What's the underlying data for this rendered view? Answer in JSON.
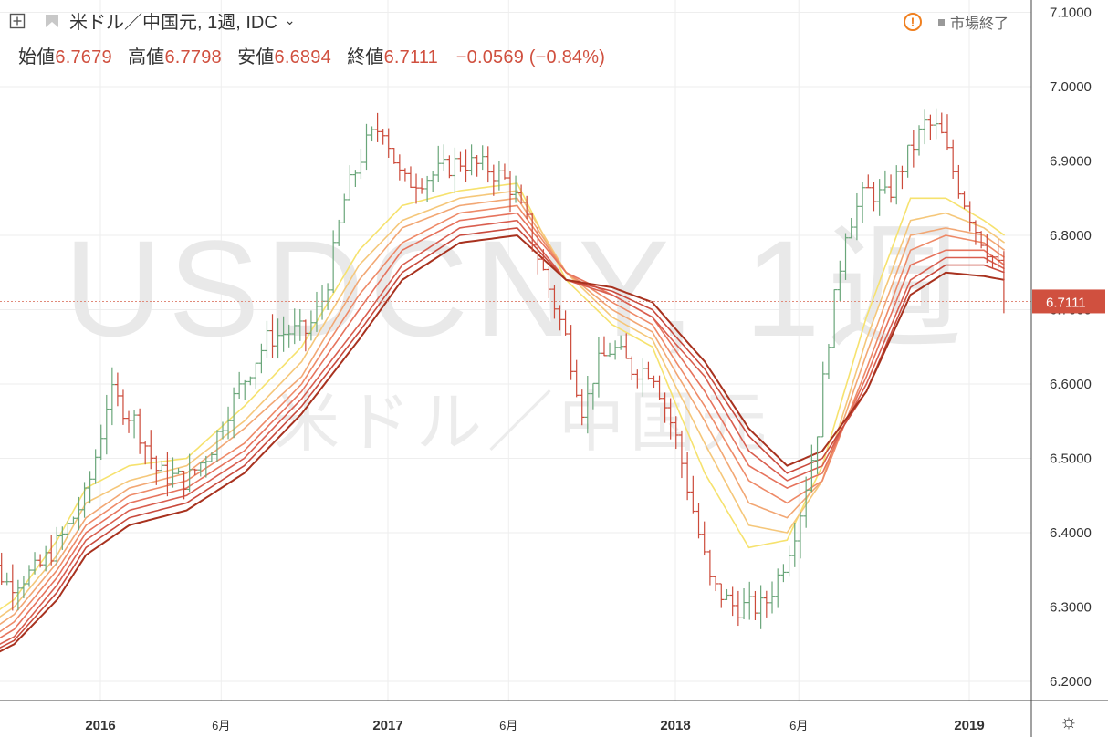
{
  "header": {
    "symbol_title": "米ドル／中国元, 1週, IDC",
    "open_label": "始値",
    "open_value": "6.7679",
    "high_label": "高値",
    "high_value": "6.7798",
    "low_label": "安値",
    "low_value": "6.6894",
    "close_label": "終値",
    "close_value": "6.7111",
    "change_text": "−0.0569 (−0.84%)"
  },
  "status": {
    "warning_icon": "!",
    "dot_icon": "square-dot-icon",
    "market_status": "市場終了"
  },
  "watermark": {
    "symbol": "USDCNY, 1週",
    "name": "米ドル／中国元"
  },
  "price_label": "6.7111",
  "colors": {
    "up": "#6aa67a",
    "down": "#cc4a3a",
    "ribbon": [
      "#f6e26e",
      "#f5c77a",
      "#f2a774",
      "#ee8a68",
      "#e6735d",
      "#d95e4f",
      "#c94a3d",
      "#a8321f"
    ],
    "grid": "#eeeeee",
    "price_line": "#e08a7a",
    "price_tag": "#d0503f"
  },
  "chart_data": {
    "type": "candlestick",
    "title": "米ドル／中国元, 1週, IDC",
    "ylim": [
      6.15,
      7.12
    ],
    "yticks": [
      6.2,
      6.3,
      6.4,
      6.5,
      6.6,
      6.7,
      6.8,
      6.9,
      7.0,
      7.1
    ],
    "ytick_labels": [
      "6.2000",
      "6.3000",
      "6.4000",
      "6.5000",
      "6.6000",
      "6.7000",
      "6.8000",
      "6.9000",
      "7.0000",
      "7.1000"
    ],
    "xtick_labels": [
      "2016",
      "6月",
      "2017",
      "6月",
      "2018",
      "6月",
      "2019"
    ],
    "last_price": 6.7111,
    "price_path": [
      [
        2015.58,
        6.38
      ],
      [
        2015.68,
        6.33
      ],
      [
        2015.78,
        6.35
      ],
      [
        2015.86,
        6.39
      ],
      [
        2015.95,
        6.45
      ],
      [
        2016.0,
        6.53
      ],
      [
        2016.03,
        6.59
      ],
      [
        2016.12,
        6.55
      ],
      [
        2016.2,
        6.48
      ],
      [
        2016.3,
        6.47
      ],
      [
        2016.38,
        6.51
      ],
      [
        2016.45,
        6.57
      ],
      [
        2016.52,
        6.62
      ],
      [
        2016.58,
        6.66
      ],
      [
        2016.65,
        6.67
      ],
      [
        2016.72,
        6.67
      ],
      [
        2016.78,
        6.72
      ],
      [
        2016.85,
        6.85
      ],
      [
        2016.92,
        6.92
      ],
      [
        2016.98,
        6.95
      ],
      [
        2017.05,
        6.87
      ],
      [
        2017.15,
        6.88
      ],
      [
        2017.25,
        6.9
      ],
      [
        2017.35,
        6.89
      ],
      [
        2017.42,
        6.87
      ],
      [
        2017.48,
        6.82
      ],
      [
        2017.55,
        6.74
      ],
      [
        2017.62,
        6.66
      ],
      [
        2017.68,
        6.56
      ],
      [
        2017.72,
        6.62
      ],
      [
        2017.78,
        6.65
      ],
      [
        2017.85,
        6.62
      ],
      [
        2017.92,
        6.62
      ],
      [
        2018.0,
        6.53
      ],
      [
        2018.06,
        6.43
      ],
      [
        2018.12,
        6.33
      ],
      [
        2018.2,
        6.3
      ],
      [
        2018.3,
        6.3
      ],
      [
        2018.36,
        6.35
      ],
      [
        2018.42,
        6.42
      ],
      [
        2018.48,
        6.53
      ],
      [
        2018.52,
        6.66
      ],
      [
        2018.58,
        6.81
      ],
      [
        2018.65,
        6.86
      ],
      [
        2018.72,
        6.85
      ],
      [
        2018.78,
        6.9
      ],
      [
        2018.85,
        6.95
      ],
      [
        2018.9,
        6.94
      ],
      [
        2018.95,
        6.88
      ],
      [
        2019.02,
        6.81
      ],
      [
        2019.08,
        6.77
      ],
      [
        2019.12,
        6.74
      ]
    ],
    "ribbon": [
      {
        "name": "",
        "values": [
          [
            2015.55,
            6.27
          ],
          [
            2015.7,
            6.31
          ],
          [
            2015.85,
            6.39
          ],
          [
            2015.95,
            6.46
          ],
          [
            2016.1,
            6.49
          ],
          [
            2016.3,
            6.5
          ],
          [
            2016.5,
            6.57
          ],
          [
            2016.7,
            6.65
          ],
          [
            2016.9,
            6.78
          ],
          [
            2017.05,
            6.84
          ],
          [
            2017.25,
            6.86
          ],
          [
            2017.45,
            6.87
          ],
          [
            2017.62,
            6.74
          ],
          [
            2017.78,
            6.68
          ],
          [
            2017.92,
            6.65
          ],
          [
            2018.1,
            6.48
          ],
          [
            2018.25,
            6.38
          ],
          [
            2018.38,
            6.39
          ],
          [
            2018.5,
            6.49
          ],
          [
            2018.65,
            6.69
          ],
          [
            2018.8,
            6.85
          ],
          [
            2018.92,
            6.85
          ],
          [
            2019.05,
            6.82
          ],
          [
            2019.12,
            6.8
          ]
        ]
      },
      {
        "name": "",
        "values": [
          [
            2015.55,
            6.26
          ],
          [
            2015.7,
            6.3
          ],
          [
            2015.85,
            6.37
          ],
          [
            2015.95,
            6.44
          ],
          [
            2016.1,
            6.47
          ],
          [
            2016.3,
            6.49
          ],
          [
            2016.5,
            6.55
          ],
          [
            2016.7,
            6.63
          ],
          [
            2016.9,
            6.76
          ],
          [
            2017.05,
            6.82
          ],
          [
            2017.25,
            6.85
          ],
          [
            2017.45,
            6.86
          ],
          [
            2017.62,
            6.75
          ],
          [
            2017.78,
            6.69
          ],
          [
            2017.92,
            6.66
          ],
          [
            2018.1,
            6.52
          ],
          [
            2018.25,
            6.41
          ],
          [
            2018.38,
            6.4
          ],
          [
            2018.5,
            6.47
          ],
          [
            2018.65,
            6.66
          ],
          [
            2018.8,
            6.82
          ],
          [
            2018.92,
            6.83
          ],
          [
            2019.05,
            6.81
          ],
          [
            2019.12,
            6.79
          ]
        ]
      },
      {
        "name": "",
        "values": [
          [
            2015.55,
            6.25
          ],
          [
            2015.7,
            6.29
          ],
          [
            2015.85,
            6.36
          ],
          [
            2015.95,
            6.42
          ],
          [
            2016.1,
            6.46
          ],
          [
            2016.3,
            6.48
          ],
          [
            2016.5,
            6.54
          ],
          [
            2016.7,
            6.61
          ],
          [
            2016.9,
            6.74
          ],
          [
            2017.05,
            6.81
          ],
          [
            2017.25,
            6.84
          ],
          [
            2017.45,
            6.85
          ],
          [
            2017.62,
            6.75
          ],
          [
            2017.78,
            6.7
          ],
          [
            2017.92,
            6.67
          ],
          [
            2018.1,
            6.55
          ],
          [
            2018.25,
            6.44
          ],
          [
            2018.38,
            6.42
          ],
          [
            2018.5,
            6.47
          ],
          [
            2018.65,
            6.64
          ],
          [
            2018.8,
            6.8
          ],
          [
            2018.92,
            6.81
          ],
          [
            2019.05,
            6.8
          ],
          [
            2019.12,
            6.78
          ]
        ]
      },
      {
        "name": "",
        "values": [
          [
            2015.55,
            6.24
          ],
          [
            2015.7,
            6.28
          ],
          [
            2015.85,
            6.35
          ],
          [
            2015.95,
            6.41
          ],
          [
            2016.1,
            6.45
          ],
          [
            2016.3,
            6.47
          ],
          [
            2016.5,
            6.52
          ],
          [
            2016.7,
            6.6
          ],
          [
            2016.9,
            6.72
          ],
          [
            2017.05,
            6.79
          ],
          [
            2017.25,
            6.83
          ],
          [
            2017.45,
            6.84
          ],
          [
            2017.62,
            6.75
          ],
          [
            2017.78,
            6.71
          ],
          [
            2017.92,
            6.68
          ],
          [
            2018.1,
            6.57
          ],
          [
            2018.25,
            6.47
          ],
          [
            2018.38,
            6.44
          ],
          [
            2018.5,
            6.47
          ],
          [
            2018.65,
            6.62
          ],
          [
            2018.8,
            6.78
          ],
          [
            2018.92,
            6.8
          ],
          [
            2019.05,
            6.79
          ],
          [
            2019.12,
            6.77
          ]
        ]
      },
      {
        "name": "",
        "values": [
          [
            2015.55,
            6.235
          ],
          [
            2015.7,
            6.27
          ],
          [
            2015.85,
            6.34
          ],
          [
            2015.95,
            6.4
          ],
          [
            2016.1,
            6.44
          ],
          [
            2016.3,
            6.46
          ],
          [
            2016.5,
            6.51
          ],
          [
            2016.7,
            6.59
          ],
          [
            2016.9,
            6.7
          ],
          [
            2017.05,
            6.78
          ],
          [
            2017.25,
            6.82
          ],
          [
            2017.45,
            6.83
          ],
          [
            2017.62,
            6.75
          ],
          [
            2017.78,
            6.72
          ],
          [
            2017.92,
            6.69
          ],
          [
            2018.1,
            6.59
          ],
          [
            2018.25,
            6.49
          ],
          [
            2018.38,
            6.46
          ],
          [
            2018.5,
            6.48
          ],
          [
            2018.65,
            6.61
          ],
          [
            2018.8,
            6.76
          ],
          [
            2018.92,
            6.78
          ],
          [
            2019.05,
            6.78
          ],
          [
            2019.12,
            6.76
          ]
        ]
      },
      {
        "name": "",
        "values": [
          [
            2015.55,
            6.23
          ],
          [
            2015.7,
            6.26
          ],
          [
            2015.85,
            6.33
          ],
          [
            2015.95,
            6.39
          ],
          [
            2016.1,
            6.43
          ],
          [
            2016.3,
            6.45
          ],
          [
            2016.5,
            6.5
          ],
          [
            2016.7,
            6.58
          ],
          [
            2016.9,
            6.68
          ],
          [
            2017.05,
            6.76
          ],
          [
            2017.25,
            6.81
          ],
          [
            2017.45,
            6.82
          ],
          [
            2017.62,
            6.74
          ],
          [
            2017.78,
            6.72
          ],
          [
            2017.92,
            6.69
          ],
          [
            2018.1,
            6.61
          ],
          [
            2018.25,
            6.51
          ],
          [
            2018.38,
            6.47
          ],
          [
            2018.5,
            6.49
          ],
          [
            2018.65,
            6.6
          ],
          [
            2018.8,
            6.74
          ],
          [
            2018.92,
            6.77
          ],
          [
            2019.05,
            6.77
          ],
          [
            2019.12,
            6.755
          ]
        ]
      },
      {
        "name": "",
        "values": [
          [
            2015.55,
            6.225
          ],
          [
            2015.7,
            6.255
          ],
          [
            2015.85,
            6.32
          ],
          [
            2015.95,
            6.38
          ],
          [
            2016.1,
            6.42
          ],
          [
            2016.3,
            6.44
          ],
          [
            2016.5,
            6.49
          ],
          [
            2016.7,
            6.57
          ],
          [
            2016.9,
            6.67
          ],
          [
            2017.05,
            6.75
          ],
          [
            2017.25,
            6.8
          ],
          [
            2017.45,
            6.81
          ],
          [
            2017.62,
            6.74
          ],
          [
            2017.78,
            6.725
          ],
          [
            2017.92,
            6.7
          ],
          [
            2018.1,
            6.62
          ],
          [
            2018.25,
            6.53
          ],
          [
            2018.38,
            6.48
          ],
          [
            2018.5,
            6.5
          ],
          [
            2018.65,
            6.59
          ],
          [
            2018.8,
            6.73
          ],
          [
            2018.92,
            6.76
          ],
          [
            2019.05,
            6.76
          ],
          [
            2019.12,
            6.75
          ]
        ]
      },
      {
        "name": "",
        "values": [
          [
            2015.55,
            6.22
          ],
          [
            2015.7,
            6.25
          ],
          [
            2015.85,
            6.31
          ],
          [
            2015.95,
            6.37
          ],
          [
            2016.1,
            6.41
          ],
          [
            2016.3,
            6.43
          ],
          [
            2016.5,
            6.48
          ],
          [
            2016.7,
            6.56
          ],
          [
            2016.9,
            6.66
          ],
          [
            2017.05,
            6.74
          ],
          [
            2017.25,
            6.79
          ],
          [
            2017.45,
            6.8
          ],
          [
            2017.62,
            6.74
          ],
          [
            2017.78,
            6.73
          ],
          [
            2017.92,
            6.71
          ],
          [
            2018.1,
            6.63
          ],
          [
            2018.25,
            6.54
          ],
          [
            2018.38,
            6.49
          ],
          [
            2018.5,
            6.51
          ],
          [
            2018.65,
            6.59
          ],
          [
            2018.8,
            6.72
          ],
          [
            2018.92,
            6.75
          ],
          [
            2019.05,
            6.745
          ],
          [
            2019.12,
            6.74
          ]
        ]
      }
    ]
  }
}
